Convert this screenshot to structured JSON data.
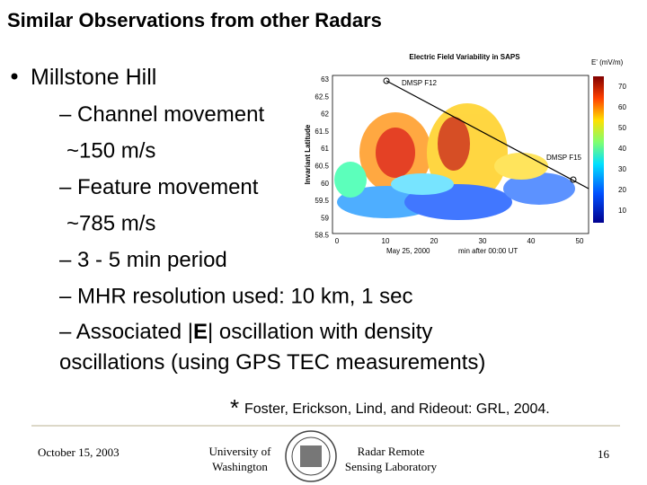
{
  "title": "Similar Observations from other Radars",
  "bullet": "Millstone Hill",
  "items": [
    {
      "text": "– Channel movement",
      "indent": false
    },
    {
      "text": "~150 m/s",
      "indent": true
    },
    {
      "text": "– Feature movement",
      "indent": false
    },
    {
      "text": "~785 m/s",
      "indent": true
    },
    {
      "text": "– 3 - 5 min period",
      "indent": false
    },
    {
      "text": "– MHR resolution used: 10 km, 1 sec",
      "indent": false
    }
  ],
  "associated": {
    "before": "– Associated |",
    "bold": "E",
    "after": "| oscillation with density",
    "continuation": "oscillations (using GPS TEC measurements)"
  },
  "footnote": {
    "star": "*",
    "text": "Foster, Erickson, Lind, and Rideout: GRL, 2004."
  },
  "figure": {
    "title": "Electric Field Variability in SAPS",
    "colorbar_label": "E' (mV/m)",
    "colorbar_ticks": [
      "70",
      "60",
      "50",
      "40",
      "30",
      "20",
      "10"
    ],
    "y_label": "Invariant Latitude",
    "y_ticks": [
      "63",
      "62.5",
      "62",
      "61.5",
      "61",
      "60.5",
      "60",
      "59.5",
      "59",
      "58.5"
    ],
    "x_ticks": [
      "0",
      "10",
      "20",
      "30",
      "40",
      "50"
    ],
    "date": "May 25, 2000",
    "x_label": "min after 00:00 UT",
    "track1": "DMSP F12",
    "track2": "DMSP F15"
  },
  "footer": {
    "date": "October 15, 2003",
    "university": [
      "University of",
      "Washington"
    ],
    "lab": [
      "Radar Remote",
      "Sensing Laboratory"
    ],
    "page": "16"
  }
}
